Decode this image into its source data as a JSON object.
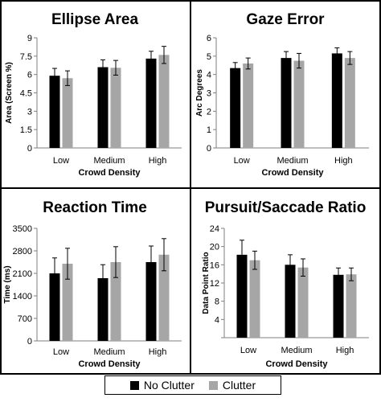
{
  "colors": {
    "no_clutter": "#000000",
    "clutter": "#a6a6a6",
    "frame": "#000000"
  },
  "legend": {
    "no_clutter": "No Clutter",
    "clutter": "Clutter"
  },
  "chart_data": [
    {
      "type": "bar",
      "title": "Ellipse Area",
      "xlabel": "Crowd Density",
      "ylabel": "Area (Screen %)",
      "categories": [
        "Low",
        "Medium",
        "High"
      ],
      "ylim": [
        0,
        9
      ],
      "yticks": [
        0,
        1.5,
        3,
        4.5,
        6,
        7.5,
        9
      ],
      "ytick_labels": [
        "0",
        "1.5",
        "3",
        "4.5",
        "6",
        "7.5",
        "9"
      ],
      "series": [
        {
          "name": "No Clutter",
          "values": [
            5.9,
            6.6,
            7.3
          ],
          "errors": [
            0.6,
            0.6,
            0.6
          ]
        },
        {
          "name": "Clutter",
          "values": [
            5.7,
            6.55,
            7.6
          ],
          "errors": [
            0.6,
            0.6,
            0.7
          ]
        }
      ]
    },
    {
      "type": "bar",
      "title": "Gaze Error",
      "xlabel": "Crowd Density",
      "ylabel": "Arc Degrees",
      "categories": [
        "Low",
        "Medium",
        "High"
      ],
      "ylim": [
        0,
        6
      ],
      "yticks": [
        0,
        1,
        2,
        3,
        4,
        5,
        6
      ],
      "ytick_labels": [
        "0",
        "1",
        "2",
        "3",
        "4",
        "5",
        "6"
      ],
      "series": [
        {
          "name": "No Clutter",
          "values": [
            4.35,
            4.9,
            5.15
          ],
          "errors": [
            0.3,
            0.35,
            0.3
          ]
        },
        {
          "name": "Clutter",
          "values": [
            4.6,
            4.75,
            4.9
          ],
          "errors": [
            0.3,
            0.4,
            0.35
          ]
        }
      ]
    },
    {
      "type": "bar",
      "title": "Reaction Time",
      "xlabel": "Crowd Density",
      "ylabel": "Time (ms)",
      "categories": [
        "Low",
        "Medium",
        "High"
      ],
      "ylim": [
        0,
        3500
      ],
      "yticks": [
        0,
        700,
        1400,
        2100,
        2800,
        3500
      ],
      "ytick_labels": [
        "0",
        "700",
        "1400",
        "2100",
        "2800",
        "3500"
      ],
      "series": [
        {
          "name": "No Clutter",
          "values": [
            2100,
            1950,
            2450
          ],
          "errors": [
            480,
            420,
            500
          ]
        },
        {
          "name": "Clutter",
          "values": [
            2400,
            2450,
            2680
          ],
          "errors": [
            480,
            480,
            500
          ]
        }
      ]
    },
    {
      "type": "bar",
      "title": "Pursuit/Saccade Ratio",
      "xlabel": "Crowd Density",
      "ylabel": "Data Point Ratio",
      "categories": [
        "Low",
        "Medium",
        "High"
      ],
      "ylim": [
        0,
        24
      ],
      "yticks": [
        0,
        4,
        8,
        12,
        16,
        20,
        24
      ],
      "ytick_labels": [
        "",
        "4",
        "8",
        "12",
        "16",
        "20",
        "24"
      ],
      "series": [
        {
          "name": "No Clutter",
          "values": [
            18.2,
            16.0,
            13.8
          ],
          "errors": [
            3.2,
            2.2,
            1.5
          ]
        },
        {
          "name": "Clutter",
          "values": [
            17.0,
            15.4,
            13.9
          ],
          "errors": [
            2.0,
            1.9,
            1.4
          ]
        }
      ]
    }
  ]
}
